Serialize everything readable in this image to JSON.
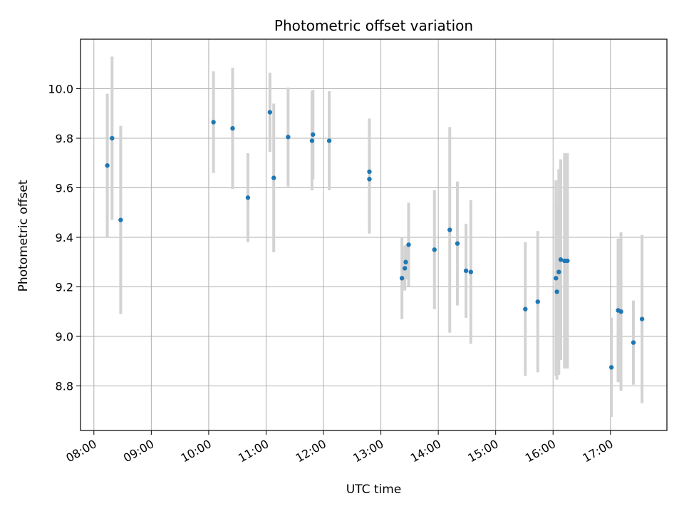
{
  "chart_data": {
    "type": "scatter",
    "title": "Photometric offset variation",
    "xlabel": "UTC time",
    "ylabel": "Photometric offset",
    "x_unit": "hour of day (UTC)",
    "xlim": [
      "07:46",
      "17:59"
    ],
    "ylim": [
      8.62,
      10.2
    ],
    "x_ticks": [
      "08:00",
      "09:00",
      "10:00",
      "11:00",
      "12:00",
      "13:00",
      "14:00",
      "15:00",
      "16:00",
      "17:00"
    ],
    "y_ticks": [
      8.8,
      9.0,
      9.2,
      9.4,
      9.6,
      9.8,
      10.0
    ],
    "grid": true,
    "marker_color": "#1f77b4",
    "errorbar_color": "#d3d3d3",
    "points": [
      {
        "x": "08:14",
        "y": 9.69,
        "err": 0.29
      },
      {
        "x": "08:19",
        "y": 9.8,
        "err": 0.33
      },
      {
        "x": "08:28",
        "y": 9.47,
        "err": 0.38
      },
      {
        "x": "10:05",
        "y": 9.865,
        "err": 0.205
      },
      {
        "x": "10:25",
        "y": 9.84,
        "err": 0.245
      },
      {
        "x": "10:41",
        "y": 9.56,
        "err": 0.18
      },
      {
        "x": "11:04",
        "y": 9.905,
        "err": 0.16
      },
      {
        "x": "11:08",
        "y": 9.64,
        "err": 0.3
      },
      {
        "x": "11:23",
        "y": 9.805,
        "err": 0.2
      },
      {
        "x": "11:48",
        "y": 9.79,
        "err": 0.2
      },
      {
        "x": "11:49",
        "y": 9.815,
        "err": 0.18
      },
      {
        "x": "12:06",
        "y": 9.79,
        "err": 0.2
      },
      {
        "x": "12:48",
        "y": 9.665,
        "err": 0.215
      },
      {
        "x": "12:48",
        "y": 9.635,
        "err": 0.22
      },
      {
        "x": "13:22",
        "y": 9.235,
        "err": 0.165
      },
      {
        "x": "13:25",
        "y": 9.275,
        "err": 0.09
      },
      {
        "x": "13:26",
        "y": 9.3,
        "err": 0.07
      },
      {
        "x": "13:29",
        "y": 9.37,
        "err": 0.17
      },
      {
        "x": "13:56",
        "y": 9.35,
        "err": 0.24
      },
      {
        "x": "14:12",
        "y": 9.43,
        "err": 0.415
      },
      {
        "x": "14:20",
        "y": 9.375,
        "err": 0.25
      },
      {
        "x": "14:29",
        "y": 9.265,
        "err": 0.19
      },
      {
        "x": "14:34",
        "y": 9.26,
        "err": 0.29
      },
      {
        "x": "15:31",
        "y": 9.11,
        "err": 0.27
      },
      {
        "x": "15:44",
        "y": 9.14,
        "err": 0.285
      },
      {
        "x": "16:03",
        "y": 9.235,
        "err": 0.395
      },
      {
        "x": "16:04",
        "y": 9.18,
        "err": 0.355
      },
      {
        "x": "16:06",
        "y": 9.26,
        "err": 0.415
      },
      {
        "x": "16:08",
        "y": 9.31,
        "err": 0.405
      },
      {
        "x": "16:12",
        "y": 9.305,
        "err": 0.435
      },
      {
        "x": "16:15",
        "y": 9.305,
        "err": 0.435
      },
      {
        "x": "17:01",
        "y": 8.875,
        "err": 0.2
      },
      {
        "x": "17:08",
        "y": 9.105,
        "err": 0.29
      },
      {
        "x": "17:11",
        "y": 9.1,
        "err": 0.32
      },
      {
        "x": "17:24",
        "y": 8.975,
        "err": 0.17
      },
      {
        "x": "17:33",
        "y": 9.07,
        "err": 0.34
      }
    ]
  }
}
